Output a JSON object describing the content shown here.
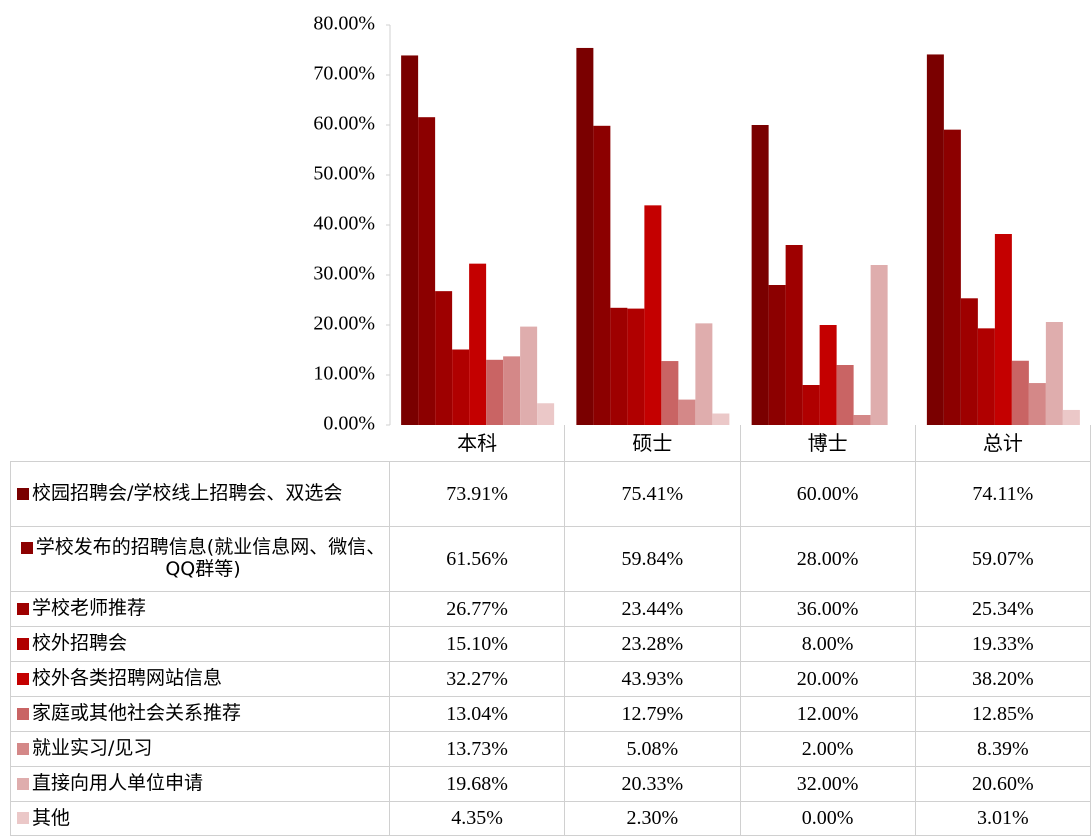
{
  "chart_data": {
    "type": "bar",
    "categories": [
      "本科",
      "硕士",
      "博士",
      "总计"
    ],
    "ylim": [
      0,
      80
    ],
    "yticks": [
      {
        "value": 0,
        "label": "0.00%"
      },
      {
        "value": 10,
        "label": "10.00%"
      },
      {
        "value": 20,
        "label": "20.00%"
      },
      {
        "value": 30,
        "label": "30.00%"
      },
      {
        "value": 40,
        "label": "40.00%"
      },
      {
        "value": 50,
        "label": "50.00%"
      },
      {
        "value": 60,
        "label": "60.00%"
      },
      {
        "value": 70,
        "label": "70.00%"
      },
      {
        "value": 80,
        "label": "80.00%"
      }
    ],
    "series": [
      {
        "name": "校园招聘会/学校线上招聘会、双选会",
        "color": "#7a0000",
        "values": [
          73.91,
          75.41,
          60.0,
          74.11
        ],
        "value_labels": [
          "73.91%",
          "75.41%",
          "60.00%",
          "74.11%"
        ]
      },
      {
        "name": "学校发布的招聘信息(就业信息网、微信、QQ群等)",
        "color": "#8c0000",
        "values": [
          61.56,
          59.84,
          28.0,
          59.07
        ],
        "value_labels": [
          "61.56%",
          "59.84%",
          "28.00%",
          "59.07%"
        ]
      },
      {
        "name": "学校老师推荐",
        "color": "#9e0000",
        "values": [
          26.77,
          23.44,
          36.0,
          25.34
        ],
        "value_labels": [
          "26.77%",
          "23.44%",
          "36.00%",
          "25.34%"
        ]
      },
      {
        "name": "校外招聘会",
        "color": "#b00000",
        "values": [
          15.1,
          23.28,
          8.0,
          19.33
        ],
        "value_labels": [
          "15.10%",
          "23.28%",
          "8.00%",
          "19.33%"
        ]
      },
      {
        "name": "校外各类招聘网站信息",
        "color": "#c40000",
        "values": [
          32.27,
          43.93,
          20.0,
          38.2
        ],
        "value_labels": [
          "32.27%",
          "43.93%",
          "20.00%",
          "38.20%"
        ]
      },
      {
        "name": "家庭或其他社会关系推荐",
        "color": "#c96464",
        "values": [
          13.04,
          12.79,
          12.0,
          12.85
        ],
        "value_labels": [
          "13.04%",
          "12.79%",
          "12.00%",
          "12.85%"
        ]
      },
      {
        "name": "就业实习/见习",
        "color": "#d48888",
        "values": [
          13.73,
          5.08,
          2.0,
          8.39
        ],
        "value_labels": [
          "13.73%",
          "5.08%",
          "2.00%",
          "8.39%"
        ]
      },
      {
        "name": "直接向用人单位申请",
        "color": "#dfadad",
        "values": [
          19.68,
          20.33,
          32.0,
          20.6
        ],
        "value_labels": [
          "19.68%",
          "20.33%",
          "32.00%",
          "20.60%"
        ]
      },
      {
        "name": "其他",
        "color": "#ebc8c8",
        "values": [
          4.35,
          2.3,
          0.0,
          3.01
        ],
        "value_labels": [
          "4.35%",
          "2.30%",
          "0.00%",
          "3.01%"
        ]
      }
    ]
  }
}
